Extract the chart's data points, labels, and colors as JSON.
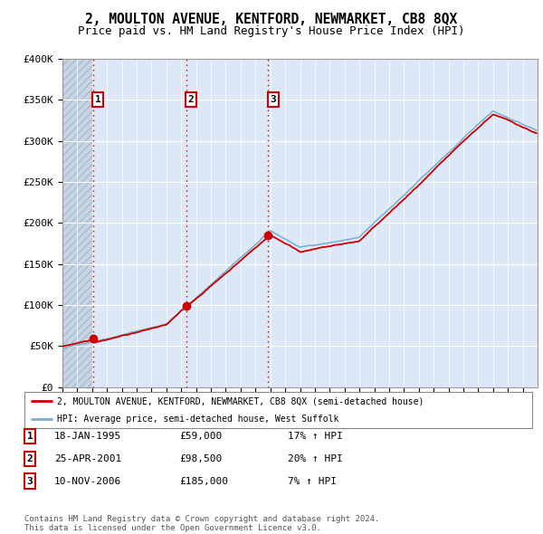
{
  "title": "2, MOULTON AVENUE, KENTFORD, NEWMARKET, CB8 8QX",
  "subtitle": "Price paid vs. HM Land Registry's House Price Index (HPI)",
  "ylim": [
    0,
    400000
  ],
  "yticks": [
    0,
    50000,
    100000,
    150000,
    200000,
    250000,
    300000,
    350000,
    400000
  ],
  "ytick_labels": [
    "£0",
    "£50K",
    "£100K",
    "£150K",
    "£200K",
    "£250K",
    "£300K",
    "£350K",
    "£400K"
  ],
  "background_color": "#ffffff",
  "plot_bg_color": "#dce8f5",
  "hatch_color": "#c5d5e5",
  "grid_color": "#ffffff",
  "purchase_years": [
    1995.05,
    2001.32,
    2006.86
  ],
  "purchase_prices": [
    59000,
    98500,
    185000
  ],
  "purchase_labels": [
    "1",
    "2",
    "3"
  ],
  "vline_color": "#cc0000",
  "red_line_color": "#cc0000",
  "blue_line_color": "#7aadcf",
  "legend_red_label": "2, MOULTON AVENUE, KENTFORD, NEWMARKET, CB8 8QX (semi-detached house)",
  "legend_blue_label": "HPI: Average price, semi-detached house, West Suffolk",
  "table_rows": [
    {
      "label": "1",
      "date": "18-JAN-1995",
      "price": "£59,000",
      "hpi": "17% ↑ HPI"
    },
    {
      "label": "2",
      "date": "25-APR-2001",
      "price": "£98,500",
      "hpi": "20% ↑ HPI"
    },
    {
      "label": "3",
      "date": "10-NOV-2006",
      "price": "£185,000",
      "hpi": "7% ↑ HPI"
    }
  ],
  "footnote": "Contains HM Land Registry data © Crown copyright and database right 2024.\nThis data is licensed under the Open Government Licence v3.0.",
  "title_fontsize": 10.5,
  "subtitle_fontsize": 9,
  "axis_fontsize": 8,
  "hatch_end_year": 1995.04,
  "xlim": [
    1993,
    2025
  ]
}
